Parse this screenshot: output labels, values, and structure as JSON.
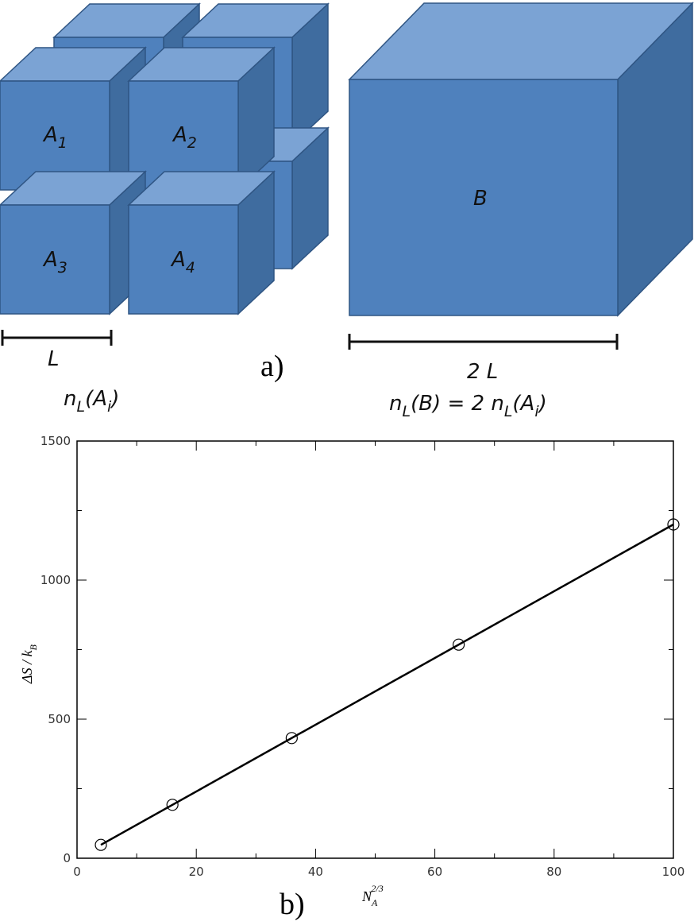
{
  "diagram": {
    "cubes": [
      {
        "base": "A",
        "sub": "1"
      },
      {
        "base": "A",
        "sub": "2"
      },
      {
        "base": "A",
        "sub": "3"
      },
      {
        "base": "A",
        "sub": "4"
      },
      {
        "base": "B"
      }
    ],
    "small_length": "L",
    "large_length": "2 L",
    "small_count": {
      "a": "n",
      "b": "L",
      "c": "(A",
      "d": "i",
      "e": ")"
    },
    "large_count": {
      "a": "n",
      "b": "L",
      "c": "(B) = 2 n",
      "d": "L",
      "e": "(A",
      "f": "i",
      "g": ")"
    },
    "panel_a": "a)",
    "panel_b": "b)"
  },
  "chart_data": {
    "type": "scatter",
    "x": [
      4,
      16,
      36,
      64,
      100
    ],
    "values": [
      48,
      192,
      432,
      768,
      1200
    ],
    "line": {
      "x": [
        4,
        100
      ],
      "values": [
        48,
        1200
      ]
    },
    "xlim": [
      0,
      100
    ],
    "ylim": [
      0,
      1500
    ],
    "xticks": [
      0,
      20,
      40,
      60,
      80,
      100
    ],
    "yticks": [
      0,
      500,
      1000,
      1500
    ],
    "x_minor_ticks": [
      10,
      30,
      50,
      70,
      90
    ],
    "y_minor_ticks": [
      250,
      750,
      1250
    ],
    "xlabel": {
      "main": "N",
      "sub": "A",
      "sup": "2/3"
    },
    "ylabel": {
      "main": "ΔS / k",
      "sub": "B"
    },
    "color": "#000000"
  }
}
